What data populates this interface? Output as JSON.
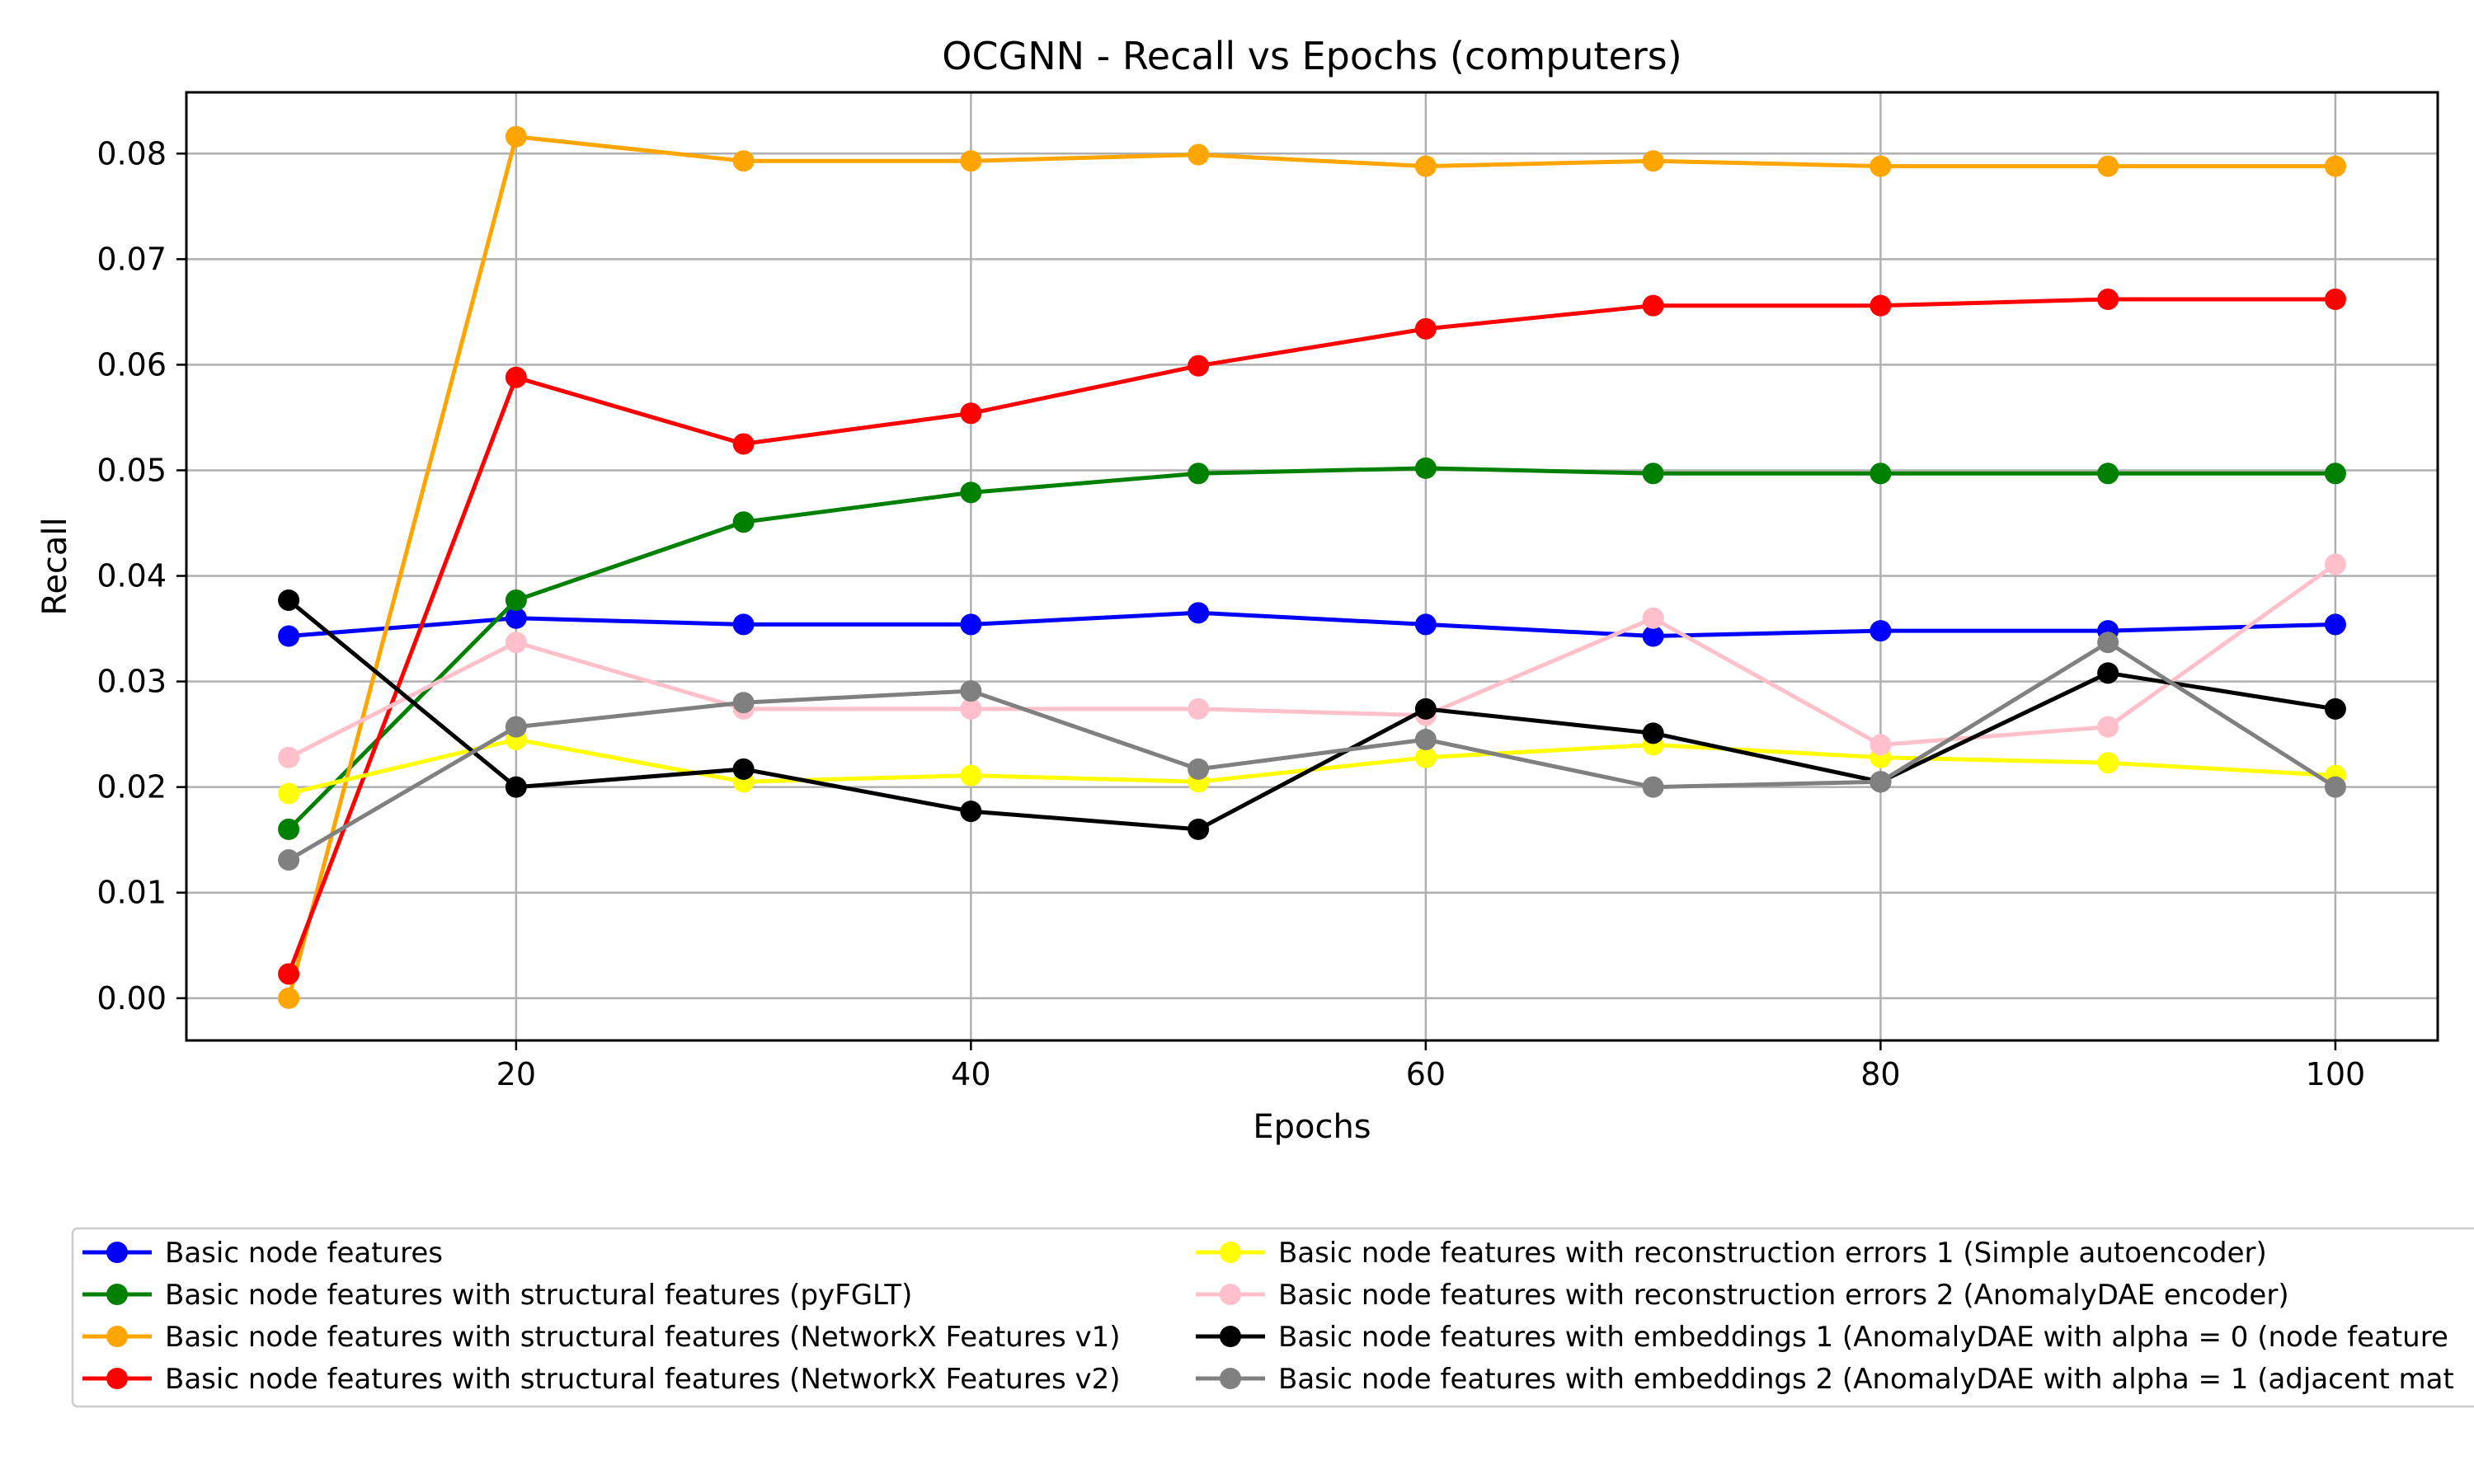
{
  "chart_data": {
    "type": "line",
    "title": "OCGNN - Recall vs Epochs (computers)",
    "xlabel": "Epochs",
    "ylabel": "Recall",
    "xlim": [
      5.5,
      104.5
    ],
    "ylim": [
      -0.004,
      0.0858
    ],
    "xticks": [
      20,
      40,
      60,
      80,
      100
    ],
    "yticks": [
      0.0,
      0.01,
      0.02,
      0.03,
      0.04,
      0.05,
      0.06,
      0.07,
      0.08
    ],
    "ytick_labels": [
      "0.00",
      "0.01",
      "0.02",
      "0.03",
      "0.04",
      "0.05",
      "0.06",
      "0.07",
      "0.08"
    ],
    "grid": true,
    "legend_position": "bottom",
    "x": [
      10,
      20,
      30,
      40,
      50,
      60,
      70,
      80,
      90,
      100
    ],
    "series": [
      {
        "name": "Basic node features",
        "color": "#0000ff",
        "values": [
          0.0343,
          0.036,
          0.0354,
          0.0354,
          0.0365,
          0.0354,
          0.0343,
          0.0348,
          0.0348,
          0.0354
        ]
      },
      {
        "name": "Basic node features with structural features (pyFGLT)",
        "color": "#008000",
        "values": [
          0.016,
          0.0377,
          0.0451,
          0.0479,
          0.0497,
          0.0502,
          0.0497,
          0.0497,
          0.0497,
          0.0497
        ]
      },
      {
        "name": "Basic node features with structural features (NetworkX Features v1)",
        "color": "#ffa500",
        "values": [
          0.0,
          0.0816,
          0.0793,
          0.0793,
          0.0799,
          0.0788,
          0.0793,
          0.0788,
          0.0788,
          0.0788
        ]
      },
      {
        "name": "Basic node features with structural features (NetworkX Features v2)",
        "color": "#ff0000",
        "values": [
          0.0023,
          0.0588,
          0.0525,
          0.0554,
          0.0599,
          0.0634,
          0.0656,
          0.0656,
          0.0662,
          0.0662
        ]
      },
      {
        "name": "Basic node features with reconstruction errors 1 (Simple autoencoder)",
        "color": "#ffff00",
        "values": [
          0.0194,
          0.0245,
          0.0205,
          0.0211,
          0.0205,
          0.0228,
          0.024,
          0.0228,
          0.0223,
          0.0211
        ]
      },
      {
        "name": "Basic node features with reconstruction errors 2 (AnomalyDAE encoder)",
        "color": "#ffc0cb",
        "values": [
          0.0228,
          0.0337,
          0.0274,
          0.0274,
          0.0274,
          0.0268,
          0.036,
          0.024,
          0.0257,
          0.0411
        ]
      },
      {
        "name": "Basic node features with embeddings 1 (AnomalyDAE with alpha = 0 (node feature",
        "color": "#000000",
        "values": [
          0.0377,
          0.02,
          0.0217,
          0.0177,
          0.016,
          0.0274,
          0.0251,
          0.0205,
          0.0308,
          0.0274
        ]
      },
      {
        "name": "Basic node features with embeddings 2 (AnomalyDAE with alpha = 1 (adjacent mat",
        "color": "#808080",
        "values": [
          0.0131,
          0.0257,
          0.028,
          0.0291,
          0.0217,
          0.0245,
          0.02,
          0.0205,
          0.0337,
          0.02
        ]
      }
    ]
  }
}
